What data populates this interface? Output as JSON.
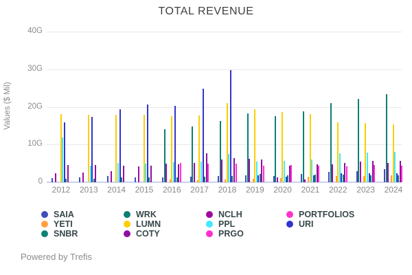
{
  "title": "TOTAL REVENUE",
  "y_axis": {
    "label": "Values ($ Mil)"
  },
  "footer": "Powered by Trefis",
  "chart_data": {
    "type": "bar",
    "title": "TOTAL REVENUE",
    "xlabel": "",
    "ylabel": "Values ($ Mil)",
    "ylim": [
      0,
      40
    ],
    "unit_suffix": "G",
    "grid": true,
    "legend_position": "bottom",
    "y_ticks": [
      {
        "value": 0,
        "label": "0"
      },
      {
        "value": 10,
        "label": "10G"
      },
      {
        "value": 20,
        "label": "20G"
      },
      {
        "value": 30,
        "label": "30G"
      },
      {
        "value": 40,
        "label": "40G"
      }
    ],
    "categories": [
      "2012",
      "2013",
      "2014",
      "2015",
      "2016",
      "2017",
      "2018",
      "2019",
      "2020",
      "2021",
      "2022",
      "2023",
      "2024"
    ],
    "series": [
      {
        "name": "SAIA",
        "color": "#3d4eb8",
        "values": [
          1.1,
          1.3,
          1.7,
          1.3,
          1.2,
          1.5,
          1.6,
          1.8,
          1.6,
          2.2,
          2.8,
          2.9,
          3.5
        ]
      },
      {
        "name": "WRK",
        "color": "#0a7e74",
        "values": [
          0,
          0,
          0,
          0,
          14.0,
          14.8,
          16.2,
          18.3,
          17.5,
          18.8,
          21.0,
          22.2,
          23.5
        ]
      },
      {
        "name": "NCLH",
        "color": "#a009a0",
        "values": [
          2.3,
          2.6,
          3.0,
          4.2,
          4.9,
          5.2,
          6.1,
          6.3,
          1.3,
          0.7,
          4.8,
          5.4,
          5.2
        ]
      },
      {
        "name": "PORTFOLIOS",
        "color": "#ff33cc",
        "values": [
          0,
          0,
          0,
          0,
          0,
          0,
          0,
          0,
          0,
          0,
          0,
          0,
          0
        ]
      },
      {
        "name": "YETI",
        "color": "#ffa040",
        "values": [
          0,
          0,
          0,
          0,
          0.8,
          0.6,
          0.8,
          0.9,
          1.1,
          1.4,
          1.6,
          1.7,
          1.9
        ]
      },
      {
        "name": "LUMN",
        "color": "#fcce00",
        "values": [
          18.1,
          18.0,
          18.0,
          17.9,
          17.5,
          17.7,
          21.0,
          19.3,
          18.6,
          18.1,
          16.0,
          15.7,
          15.4
        ]
      },
      {
        "name": "PPL",
        "color": "#42e8ff",
        "values": [
          11.9,
          4.4,
          5.1,
          4.9,
          5.3,
          5.4,
          7.5,
          5.5,
          5.7,
          6.0,
          7.7,
          7.9,
          8.0
        ]
      },
      {
        "name": "URI",
        "color": "#2f35cb",
        "values": [
          15.9,
          17.4,
          19.4,
          20.6,
          20.3,
          24.8,
          29.9,
          1.8,
          1.5,
          1.8,
          2.4,
          2.3,
          2.3
        ]
      },
      {
        "name": "SNBR",
        "color": "#0e8176",
        "values": [
          0.9,
          1.0,
          1.2,
          1.2,
          1.3,
          1.4,
          1.6,
          2.2,
          1.9,
          2.0,
          2.1,
          1.9,
          1.9
        ]
      },
      {
        "name": "COTY",
        "color": "#8e0f9e",
        "values": [
          4.6,
          4.6,
          4.4,
          4.3,
          4.7,
          7.7,
          6.4,
          6.0,
          4.3,
          4.8,
          5.2,
          5.6,
          5.6
        ]
      },
      {
        "name": "PRGO",
        "color": "#ff2ed2",
        "values": [
          0,
          0,
          0,
          0,
          5.2,
          4.9,
          4.9,
          4.3,
          4.6,
          4.3,
          4.2,
          4.6,
          4.3
        ]
      }
    ],
    "legend_columns": [
      [
        "SAIA",
        "YETI",
        "SNBR"
      ],
      [
        "WRK",
        "LUMN",
        "COTY"
      ],
      [
        "NCLH",
        "PPL",
        "PRGO"
      ],
      [
        "PORTFOLIOS",
        "URI"
      ]
    ]
  }
}
